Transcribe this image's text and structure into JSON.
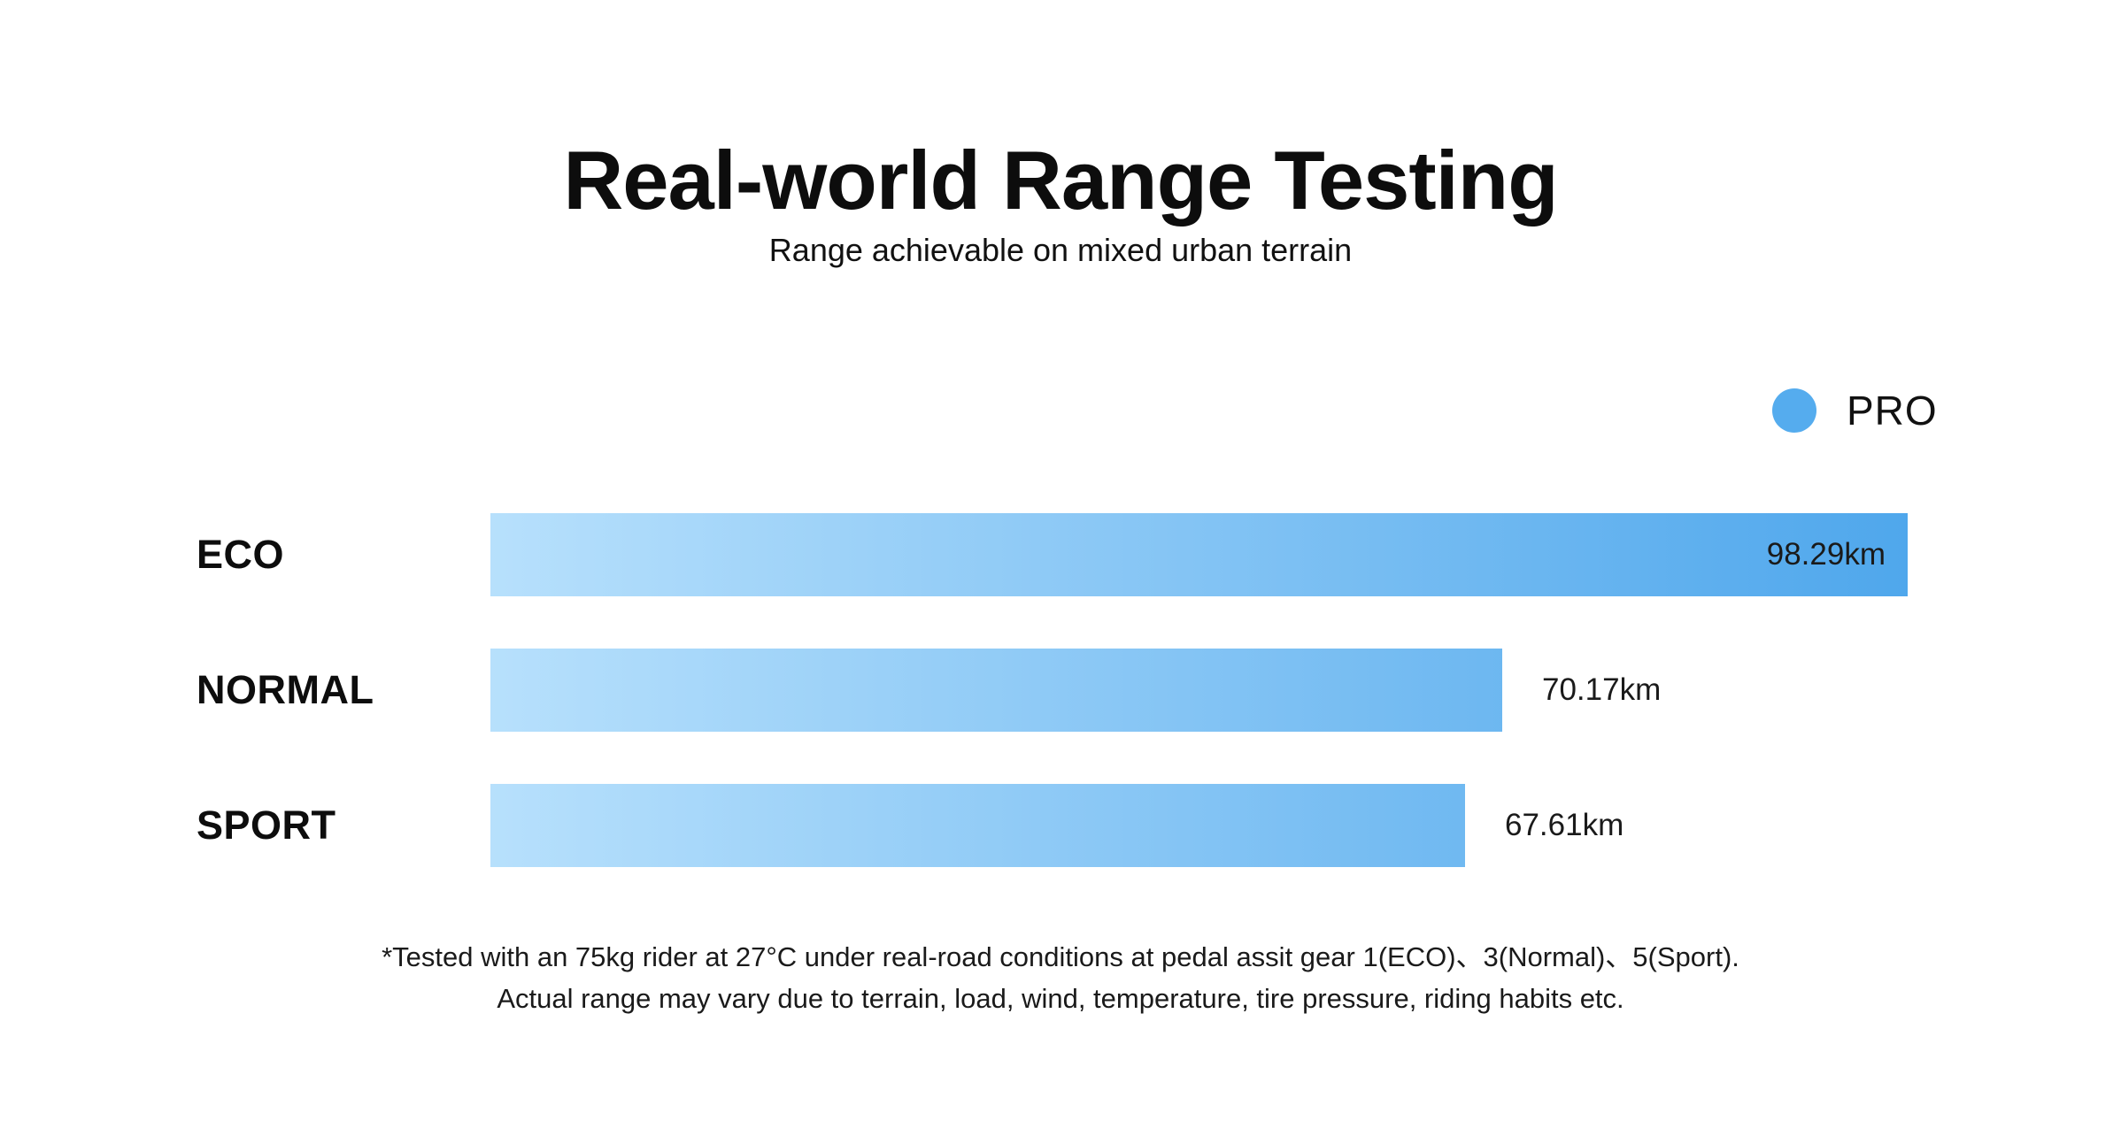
{
  "chart_data": {
    "type": "bar",
    "orientation": "horizontal",
    "title": "Real-world Range Testing",
    "subtitle": "Range achievable on mixed urban terrain",
    "legend": {
      "label": "PRO",
      "color": "#55ACEE",
      "position": "top-right"
    },
    "categories": [
      "ECO",
      "NORMAL",
      "SPORT"
    ],
    "values": [
      98.29,
      70.17,
      67.61
    ],
    "unit": "km",
    "value_labels": [
      "98.29km",
      "70.17km",
      "67.61km"
    ],
    "value_label_position": [
      "inside-end",
      "outside-end",
      "outside-end"
    ],
    "xlim": [
      0,
      98.29
    ],
    "grid": false,
    "axes_shown": false,
    "bar_gradient_start": "#B7E0FC",
    "bar_gradient_end": "#4FA7EC",
    "annotations": [
      "*Tested with an 75kg rider at 27°C under real-road conditions at pedal assit gear 1(ECO)、3(Normal)、5(Sport).",
      "Actual range may vary due to terrain, load, wind, temperature, tire pressure, riding habits etc."
    ]
  }
}
